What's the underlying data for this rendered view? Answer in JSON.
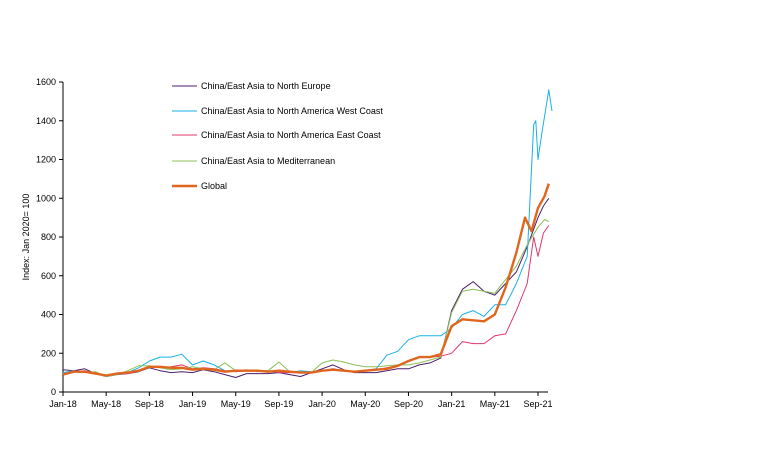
{
  "chart_data": {
    "type": "line",
    "title": "",
    "xlabel": "",
    "ylabel": "Index: Jan 2020= 100",
    "ylim": [
      0,
      1600
    ],
    "yticks": [
      0,
      200,
      400,
      600,
      800,
      1000,
      1200,
      1400,
      1600
    ],
    "x_unit": "months since Jan-18",
    "xlim": [
      0,
      45
    ],
    "xticks": [
      {
        "x": 0,
        "label": "Jan-18"
      },
      {
        "x": 4,
        "label": "May-18"
      },
      {
        "x": 8,
        "label": "Sep-18"
      },
      {
        "x": 12,
        "label": "Jan-19"
      },
      {
        "x": 16,
        "label": "May-19"
      },
      {
        "x": 20,
        "label": "Sep-19"
      },
      {
        "x": 24,
        "label": "Jan-20"
      },
      {
        "x": 28,
        "label": "May-20"
      },
      {
        "x": 32,
        "label": "Sep-20"
      },
      {
        "x": 36,
        "label": "Jan-21"
      },
      {
        "x": 40,
        "label": "May-21"
      },
      {
        "x": 44,
        "label": "Sep-21"
      }
    ],
    "grid": false,
    "legend_position": "top-left",
    "series": [
      {
        "name": "China/East Asia to North Europe",
        "color": "#4a1f6e",
        "width": 1,
        "points": [
          [
            0,
            115
          ],
          [
            1,
            110
          ],
          [
            2,
            120
          ],
          [
            3,
            95
          ],
          [
            4,
            80
          ],
          [
            5,
            90
          ],
          [
            6,
            95
          ],
          [
            7,
            105
          ],
          [
            8,
            125
          ],
          [
            9,
            110
          ],
          [
            10,
            100
          ],
          [
            11,
            105
          ],
          [
            12,
            100
          ],
          [
            13,
            115
          ],
          [
            14,
            105
          ],
          [
            15,
            90
          ],
          [
            16,
            75
          ],
          [
            17,
            95
          ],
          [
            18,
            95
          ],
          [
            19,
            95
          ],
          [
            20,
            100
          ],
          [
            21,
            90
          ],
          [
            22,
            80
          ],
          [
            23,
            100
          ],
          [
            24,
            120
          ],
          [
            25,
            140
          ],
          [
            26,
            115
          ],
          [
            27,
            100
          ],
          [
            28,
            100
          ],
          [
            29,
            100
          ],
          [
            30,
            110
          ],
          [
            31,
            120
          ],
          [
            32,
            120
          ],
          [
            33,
            140
          ],
          [
            34,
            150
          ],
          [
            35,
            175
          ],
          [
            36,
            420
          ],
          [
            37,
            530
          ],
          [
            38,
            570
          ],
          [
            39,
            520
          ],
          [
            40,
            500
          ],
          [
            41,
            560
          ],
          [
            42,
            620
          ],
          [
            43,
            750
          ],
          [
            44,
            900
          ],
          [
            44.5,
            960
          ],
          [
            45,
            1000
          ]
        ]
      },
      {
        "name": "China/East Asia to North America West Coast",
        "color": "#1ab0ea",
        "width": 1,
        "points": [
          [
            0,
            100
          ],
          [
            1,
            110
          ],
          [
            2,
            105
          ],
          [
            3,
            100
          ],
          [
            4,
            80
          ],
          [
            5,
            90
          ],
          [
            6,
            100
          ],
          [
            7,
            125
          ],
          [
            8,
            160
          ],
          [
            9,
            180
          ],
          [
            10,
            180
          ],
          [
            11,
            195
          ],
          [
            12,
            140
          ],
          [
            13,
            160
          ],
          [
            14,
            140
          ],
          [
            15,
            110
          ],
          [
            16,
            110
          ],
          [
            17,
            110
          ],
          [
            18,
            110
          ],
          [
            19,
            110
          ],
          [
            20,
            100
          ],
          [
            21,
            100
          ],
          [
            22,
            110
          ],
          [
            23,
            105
          ],
          [
            24,
            110
          ],
          [
            25,
            120
          ],
          [
            26,
            110
          ],
          [
            27,
            105
          ],
          [
            28,
            110
          ],
          [
            29,
            120
          ],
          [
            30,
            190
          ],
          [
            31,
            210
          ],
          [
            32,
            270
          ],
          [
            33,
            290
          ],
          [
            34,
            290
          ],
          [
            35,
            290
          ],
          [
            36,
            330
          ],
          [
            37,
            400
          ],
          [
            38,
            420
          ],
          [
            39,
            390
          ],
          [
            40,
            450
          ],
          [
            41,
            450
          ],
          [
            42,
            560
          ],
          [
            43,
            700
          ],
          [
            43.6,
            1380
          ],
          [
            43.8,
            1400
          ],
          [
            44,
            1200
          ],
          [
            44.4,
            1350
          ],
          [
            45,
            1560
          ],
          [
            45.3,
            1450
          ]
        ]
      },
      {
        "name": "China/East Asia to North America East Coast",
        "color": "#e0386b",
        "width": 1,
        "points": [
          [
            0,
            95
          ],
          [
            1,
            105
          ],
          [
            2,
            110
          ],
          [
            3,
            100
          ],
          [
            4,
            85
          ],
          [
            5,
            95
          ],
          [
            6,
            95
          ],
          [
            7,
            110
          ],
          [
            8,
            130
          ],
          [
            9,
            125
          ],
          [
            10,
            130
          ],
          [
            11,
            140
          ],
          [
            12,
            120
          ],
          [
            13,
            125
          ],
          [
            14,
            120
          ],
          [
            15,
            110
          ],
          [
            16,
            105
          ],
          [
            17,
            110
          ],
          [
            18,
            110
          ],
          [
            19,
            110
          ],
          [
            20,
            100
          ],
          [
            21,
            100
          ],
          [
            22,
            100
          ],
          [
            23,
            100
          ],
          [
            24,
            110
          ],
          [
            25,
            120
          ],
          [
            26,
            110
          ],
          [
            27,
            105
          ],
          [
            28,
            110
          ],
          [
            29,
            115
          ],
          [
            30,
            125
          ],
          [
            31,
            135
          ],
          [
            32,
            160
          ],
          [
            33,
            180
          ],
          [
            34,
            180
          ],
          [
            35,
            185
          ],
          [
            36,
            200
          ],
          [
            37,
            260
          ],
          [
            38,
            250
          ],
          [
            39,
            250
          ],
          [
            40,
            290
          ],
          [
            41,
            300
          ],
          [
            42,
            420
          ],
          [
            43,
            560
          ],
          [
            43.6,
            800
          ],
          [
            44,
            700
          ],
          [
            44.5,
            820
          ],
          [
            45,
            860
          ]
        ]
      },
      {
        "name": "China/East Asia to Mediterranean",
        "color": "#8cbf5a",
        "width": 1,
        "points": [
          [
            0,
            95
          ],
          [
            1,
            105
          ],
          [
            2,
            100
          ],
          [
            3,
            105
          ],
          [
            4,
            80
          ],
          [
            5,
            90
          ],
          [
            6,
            110
          ],
          [
            7,
            135
          ],
          [
            8,
            135
          ],
          [
            9,
            125
          ],
          [
            10,
            115
          ],
          [
            11,
            120
          ],
          [
            12,
            130
          ],
          [
            13,
            120
          ],
          [
            14,
            115
          ],
          [
            15,
            150
          ],
          [
            16,
            110
          ],
          [
            17,
            115
          ],
          [
            18,
            105
          ],
          [
            19,
            110
          ],
          [
            20,
            155
          ],
          [
            21,
            105
          ],
          [
            22,
            100
          ],
          [
            23,
            100
          ],
          [
            24,
            150
          ],
          [
            25,
            165
          ],
          [
            26,
            155
          ],
          [
            27,
            140
          ],
          [
            28,
            130
          ],
          [
            29,
            130
          ],
          [
            30,
            135
          ],
          [
            31,
            140
          ],
          [
            32,
            140
          ],
          [
            33,
            150
          ],
          [
            34,
            165
          ],
          [
            35,
            180
          ],
          [
            36,
            410
          ],
          [
            37,
            520
          ],
          [
            38,
            530
          ],
          [
            39,
            520
          ],
          [
            40,
            510
          ],
          [
            41,
            580
          ],
          [
            42,
            650
          ],
          [
            43,
            760
          ],
          [
            44,
            850
          ],
          [
            44.6,
            890
          ],
          [
            45,
            880
          ]
        ]
      },
      {
        "name": "Global",
        "color": "#e0661e",
        "width": 2.4,
        "points": [
          [
            0,
            90
          ],
          [
            1,
            105
          ],
          [
            2,
            105
          ],
          [
            3,
            95
          ],
          [
            4,
            85
          ],
          [
            5,
            95
          ],
          [
            6,
            100
          ],
          [
            7,
            110
          ],
          [
            8,
            130
          ],
          [
            9,
            130
          ],
          [
            10,
            125
          ],
          [
            11,
            125
          ],
          [
            12,
            115
          ],
          [
            13,
            120
          ],
          [
            14,
            115
          ],
          [
            15,
            105
          ],
          [
            16,
            110
          ],
          [
            17,
            110
          ],
          [
            18,
            110
          ],
          [
            19,
            105
          ],
          [
            20,
            110
          ],
          [
            21,
            105
          ],
          [
            22,
            100
          ],
          [
            23,
            100
          ],
          [
            24,
            110
          ],
          [
            25,
            115
          ],
          [
            26,
            110
          ],
          [
            27,
            105
          ],
          [
            28,
            110
          ],
          [
            29,
            115
          ],
          [
            30,
            120
          ],
          [
            31,
            135
          ],
          [
            32,
            160
          ],
          [
            33,
            180
          ],
          [
            34,
            180
          ],
          [
            35,
            195
          ],
          [
            36,
            340
          ],
          [
            37,
            375
          ],
          [
            38,
            370
          ],
          [
            39,
            365
          ],
          [
            40,
            400
          ],
          [
            41,
            540
          ],
          [
            42,
            720
          ],
          [
            42.8,
            900
          ],
          [
            43.4,
            830
          ],
          [
            44,
            950
          ],
          [
            44.6,
            1010
          ],
          [
            45,
            1075
          ]
        ]
      }
    ]
  }
}
